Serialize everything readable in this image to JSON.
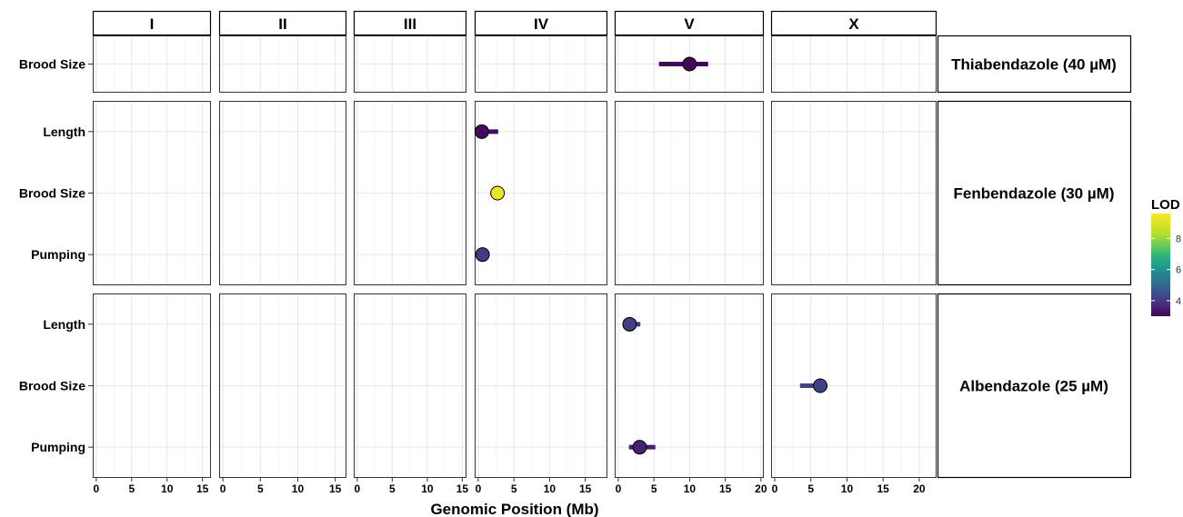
{
  "chart_data": {
    "type": "scatter",
    "xlabel": "Genomic Position (Mb)",
    "columns": [
      {
        "name": "I",
        "xlim": [
          -0.5,
          16.2
        ],
        "ticks": [
          0,
          5,
          10,
          15
        ]
      },
      {
        "name": "II",
        "xlim": [
          -0.5,
          16.5
        ],
        "ticks": [
          0,
          5,
          10,
          15
        ]
      },
      {
        "name": "III",
        "xlim": [
          -0.5,
          15.6
        ],
        "ticks": [
          0,
          5,
          10,
          15
        ]
      },
      {
        "name": "IV",
        "xlim": [
          -0.5,
          18.1
        ],
        "ticks": [
          0,
          5,
          10,
          15
        ]
      },
      {
        "name": "V",
        "xlim": [
          -0.5,
          20.4
        ],
        "ticks": [
          0,
          5,
          10,
          15,
          20
        ]
      },
      {
        "name": "X",
        "xlim": [
          -0.5,
          22.4
        ],
        "ticks": [
          0,
          5,
          10,
          15,
          20
        ]
      }
    ],
    "rows": [
      {
        "name": "Thiabendazole (40 µM)",
        "traits": [
          "Brood Size"
        ]
      },
      {
        "name": "Fenbendazole (30 µM)",
        "traits": [
          "Length",
          "Brood Size",
          "Pumping"
        ]
      },
      {
        "name": "Albendazole (25 µM)",
        "traits": [
          "Length",
          "Brood Size",
          "Pumping"
        ]
      }
    ],
    "points": [
      {
        "row": 0,
        "trait": "Brood Size",
        "chrom": "V",
        "peak": 10.0,
        "ci": [
          5.7,
          12.6
        ],
        "lod": 3.1
      },
      {
        "row": 1,
        "trait": "Length",
        "chrom": "IV",
        "peak": 0.5,
        "ci": [
          0.3,
          2.8
        ],
        "lod": 3.2
      },
      {
        "row": 1,
        "trait": "Brood Size",
        "chrom": "IV",
        "peak": 2.7,
        "ci": [
          2.6,
          2.8
        ],
        "lod": 9.4
      },
      {
        "row": 1,
        "trait": "Pumping",
        "chrom": "IV",
        "peak": 0.6,
        "ci": [
          0.5,
          0.7
        ],
        "lod": 4.1
      },
      {
        "row": 2,
        "trait": "Length",
        "chrom": "V",
        "peak": 1.6,
        "ci": [
          1.4,
          3.1
        ],
        "lod": 4.2
      },
      {
        "row": 2,
        "trait": "Brood Size",
        "chrom": "X",
        "peak": 6.3,
        "ci": [
          3.5,
          6.6
        ],
        "lod": 4.3
      },
      {
        "row": 2,
        "trait": "Pumping",
        "chrom": "V",
        "peak": 3.0,
        "ci": [
          1.5,
          5.2
        ],
        "lod": 3.6
      }
    ],
    "legend": {
      "title": "LOD",
      "ticks": [
        4,
        6,
        8
      ],
      "range": [
        3.0,
        9.6
      ],
      "position": "right"
    },
    "grid": true
  }
}
